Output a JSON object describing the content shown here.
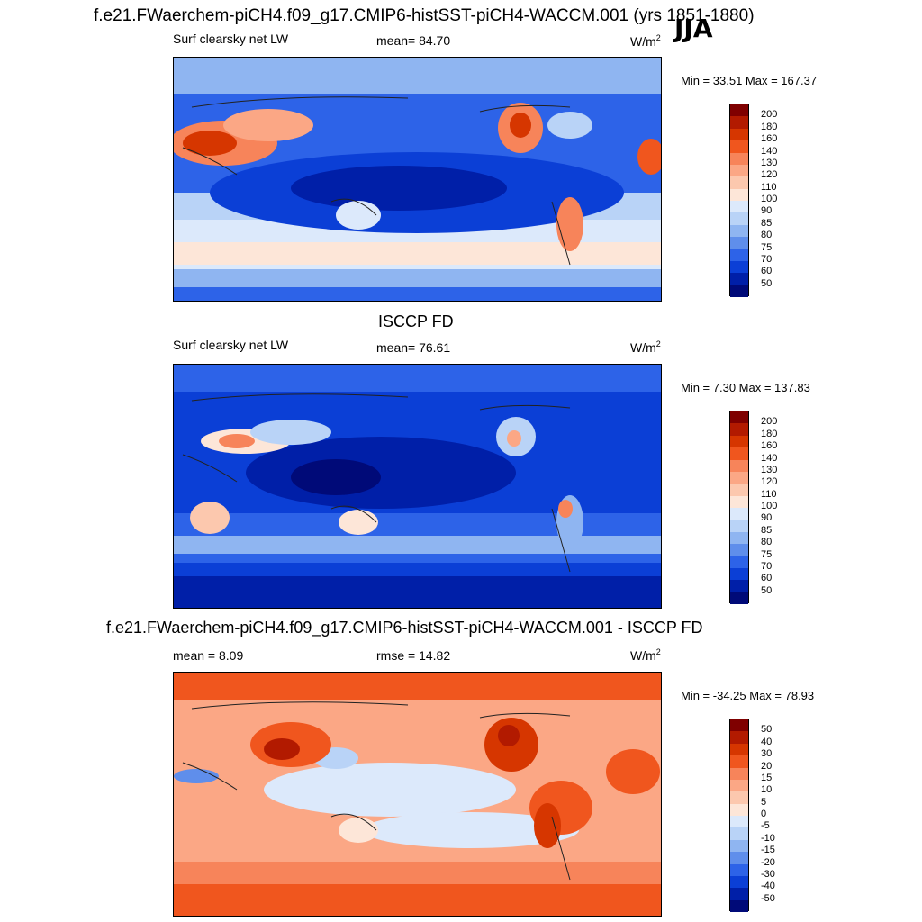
{
  "top": {
    "title": "f.e21.FWaerchem-piCH4.f09_g17.CMIP6-histSST-piCH4-WACCM.001 (yrs 1851-1880)",
    "season": "JJA",
    "variable": "Surf clearsky net LW",
    "mean_text": "mean=  84.70",
    "units": "W/m",
    "units_exp": "2",
    "minmax": "Min =  33.51 Max = 167.37"
  },
  "middle": {
    "title": "ISCCP FD",
    "variable": "Surf clearsky net LW",
    "mean_text": "mean=  76.61",
    "units": "W/m",
    "units_exp": "2",
    "minmax": "Min =   7.30 Max = 137.83"
  },
  "bottom": {
    "title": "f.e21.FWaerchem-piCH4.f09_g17.CMIP6-histSST-piCH4-WACCM.001 - ISCCP FD",
    "mean_text": "mean =   8.09",
    "rmse_text": "rmse =  14.82",
    "units": "W/m",
    "units_exp": "2",
    "minmax": "Min = -34.25 Max =  78.93"
  },
  "chart_data": [
    {
      "type": "heatmap",
      "title": "f.e21.FWaerchem-piCH4.f09_g17.CMIP6-histSST-piCH4-WACCM.001 (yrs 1851-1880)",
      "variable": "Surf clearsky net LW",
      "season": "JJA",
      "mean": 84.7,
      "min": 33.51,
      "max": 167.37,
      "units": "W/m2",
      "colorbar_levels": [
        "200",
        "180",
        "160",
        "140",
        "130",
        "120",
        "110",
        "100",
        "90",
        "85",
        "80",
        "75",
        "70",
        "60",
        "50"
      ],
      "colorbar_colors": [
        "#7f0000",
        "#b21a00",
        "#d63600",
        "#f0561e",
        "#f7845a",
        "#fba785",
        "#fcc8ae",
        "#fde6d8",
        "#dce9fb",
        "#b9d3f7",
        "#8fb5f1",
        "#5f8eeb",
        "#2d63e8",
        "#0b3fd6",
        "#001fa8",
        "#000a78"
      ]
    },
    {
      "type": "heatmap",
      "title": "ISCCP FD",
      "variable": "Surf clearsky net LW",
      "mean": 76.61,
      "min": 7.3,
      "max": 137.83,
      "units": "W/m2",
      "colorbar_levels": [
        "200",
        "180",
        "160",
        "140",
        "130",
        "120",
        "110",
        "100",
        "90",
        "85",
        "80",
        "75",
        "70",
        "60",
        "50"
      ],
      "colorbar_colors": [
        "#7f0000",
        "#b21a00",
        "#d63600",
        "#f0561e",
        "#f7845a",
        "#fba785",
        "#fcc8ae",
        "#fde6d8",
        "#dce9fb",
        "#b9d3f7",
        "#8fb5f1",
        "#5f8eeb",
        "#2d63e8",
        "#0b3fd6",
        "#001fa8",
        "#000a78"
      ]
    },
    {
      "type": "heatmap",
      "title": "f.e21.FWaerchem-piCH4.f09_g17.CMIP6-histSST-piCH4-WACCM.001 - ISCCP FD",
      "mean": 8.09,
      "rmse": 14.82,
      "min": -34.25,
      "max": 78.93,
      "units": "W/m2",
      "colorbar_levels": [
        "50",
        "40",
        "30",
        "20",
        "15",
        "10",
        "5",
        "0",
        "-5",
        "-10",
        "-15",
        "-20",
        "-30",
        "-40",
        "-50"
      ],
      "colorbar_colors": [
        "#7f0000",
        "#b21a00",
        "#d63600",
        "#f0561e",
        "#f7845a",
        "#fba785",
        "#fcc8ae",
        "#fde6d8",
        "#dce9fb",
        "#b9d3f7",
        "#8fb5f1",
        "#5f8eeb",
        "#2d63e8",
        "#0b3fd6",
        "#001fa8",
        "#000a78"
      ]
    }
  ]
}
